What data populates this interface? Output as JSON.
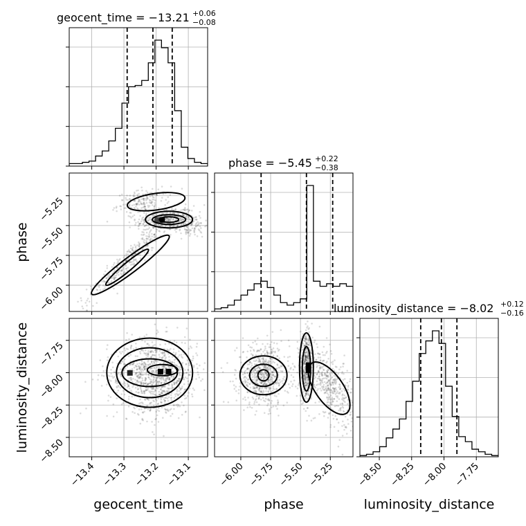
{
  "figure": {
    "type": "corner"
  },
  "chart_data": {
    "type": "corner",
    "parameters": [
      "geocent_time",
      "phase",
      "luminosity_distance"
    ],
    "axis_labels": {
      "geocent_time": "geocent_time",
      "phase": "phase",
      "luminosity_distance": "luminosity_distance"
    },
    "titles": {
      "geocent_time": {
        "prefix": "geocent_time = ",
        "median": "−13.21",
        "plus": "+0.06",
        "minus": "−0.08"
      },
      "phase": {
        "prefix": "phase = ",
        "median": "−5.45",
        "plus": "+0.22",
        "minus": "−0.38"
      },
      "luminosity_distance": {
        "prefix": "luminosity_distance = ",
        "median": "−8.02",
        "plus": "+0.12",
        "minus": "−0.16"
      }
    },
    "ranges": {
      "geocent_time": [
        -13.47,
        -13.04
      ],
      "phase": [
        -6.22,
        -5.06
      ],
      "luminosity_distance": [
        -8.65,
        -7.58
      ]
    },
    "ticks": {
      "geocent_time": {
        "values": [
          -13.4,
          -13.3,
          -13.2,
          -13.1
        ],
        "labels": [
          "−13.4",
          "−13.3",
          "−13.2",
          "−13.1"
        ]
      },
      "phase": {
        "values": [
          -6.0,
          -5.75,
          -5.5,
          -5.25
        ],
        "labels": [
          "−6.00",
          "−5.75",
          "−5.50",
          "−5.25"
        ]
      },
      "luminosity_distance": {
        "values": [
          -8.5,
          -8.25,
          -8.0,
          -7.75
        ],
        "labels": [
          "−8.50",
          "−8.25",
          "−8.00",
          "−7.75"
        ]
      }
    },
    "quantiles": {
      "geocent_time": [
        -13.29,
        -13.21,
        -13.15
      ],
      "phase": [
        -5.83,
        -5.45,
        -5.23
      ],
      "luminosity_distance": [
        -8.18,
        -8.02,
        -7.9
      ]
    },
    "histograms": {
      "geocent_time": [
        0.02,
        0.02,
        0.03,
        0.04,
        0.08,
        0.12,
        0.2,
        0.3,
        0.5,
        0.63,
        0.64,
        0.68,
        0.82,
        1.0,
        0.94,
        0.82,
        0.44,
        0.15,
        0.06,
        0.03,
        0.02
      ],
      "phase": [
        0.02,
        0.03,
        0.05,
        0.09,
        0.13,
        0.17,
        0.22,
        0.24,
        0.19,
        0.13,
        0.07,
        0.05,
        0.07,
        0.1,
        1.0,
        0.24,
        0.2,
        0.22,
        0.2,
        0.22,
        0.2
      ],
      "luminosity_distance": [
        0.01,
        0.02,
        0.04,
        0.08,
        0.15,
        0.22,
        0.3,
        0.44,
        0.6,
        0.82,
        0.92,
        1.0,
        0.9,
        0.56,
        0.32,
        0.16,
        0.12,
        0.06,
        0.04,
        0.02,
        0.01
      ]
    },
    "grid": true
  }
}
